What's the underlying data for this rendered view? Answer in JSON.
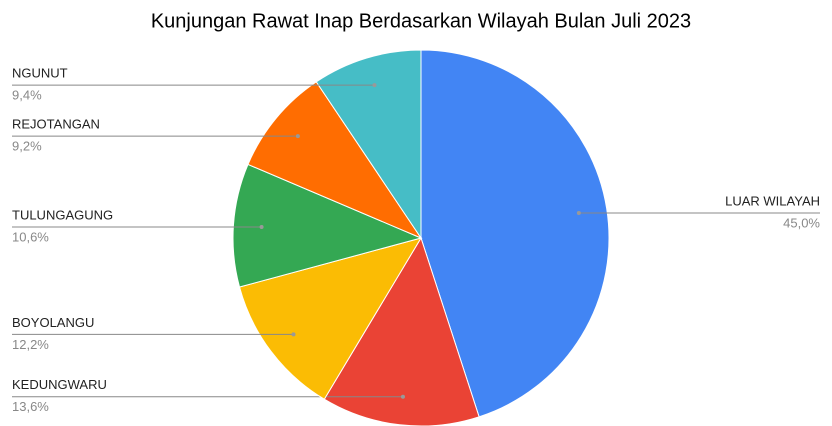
{
  "chart_data": {
    "type": "pie",
    "title": "Kunjungan Rawat Inap Berdasarkan Wilayah Bulan Juli 2023",
    "categories": [
      "LUAR WILAYAH",
      "KEDUNGWARU",
      "BOYOLANGU",
      "TULUNGAGUNG",
      "REJOTANGAN",
      "NGUNUT"
    ],
    "values": [
      45.0,
      13.6,
      12.2,
      10.6,
      9.2,
      9.4
    ],
    "value_labels": [
      "45,0%",
      "13,6%",
      "12,2%",
      "10,6%",
      "9,2%",
      "9,4%"
    ],
    "colors": [
      "#4285f4",
      "#ea4335",
      "#fbbc04",
      "#34a853",
      "#ff6d01",
      "#46bdc6"
    ]
  }
}
